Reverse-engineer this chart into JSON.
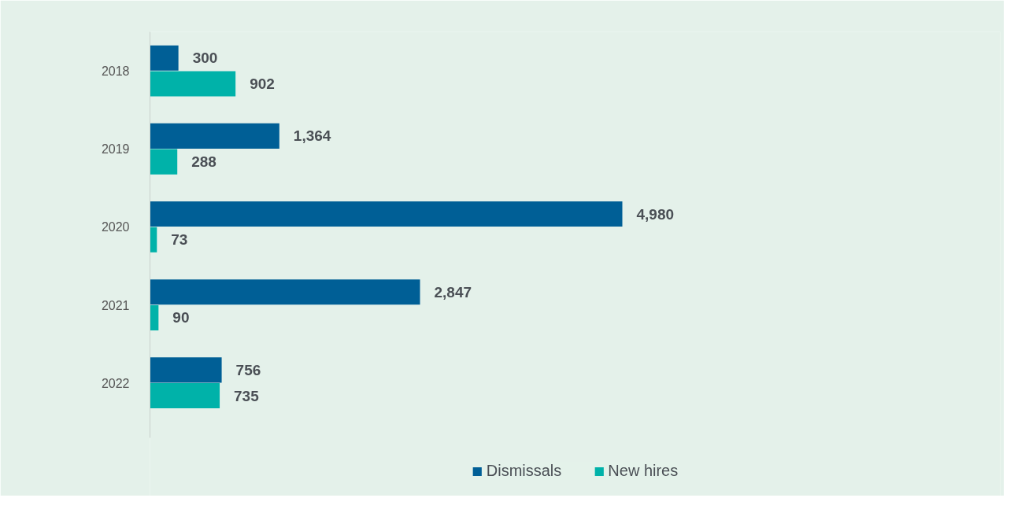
{
  "chart_data": {
    "type": "bar",
    "orientation": "horizontal",
    "categories": [
      "2018",
      "2019",
      "2020",
      "2021",
      "2022"
    ],
    "series": [
      {
        "name": "Dismissals",
        "color": "#005f96",
        "values": [
          300,
          1364,
          4980,
          2847,
          756
        ],
        "value_labels": [
          "300",
          "1,364",
          "4,980",
          "2,847",
          "756"
        ]
      },
      {
        "name": "New hires",
        "color": "#00b2a9",
        "values": [
          902,
          288,
          73,
          90,
          735
        ],
        "value_labels": [
          "902",
          "288",
          "73",
          "90",
          "735"
        ]
      }
    ],
    "legend": "bottom",
    "grid": false
  }
}
